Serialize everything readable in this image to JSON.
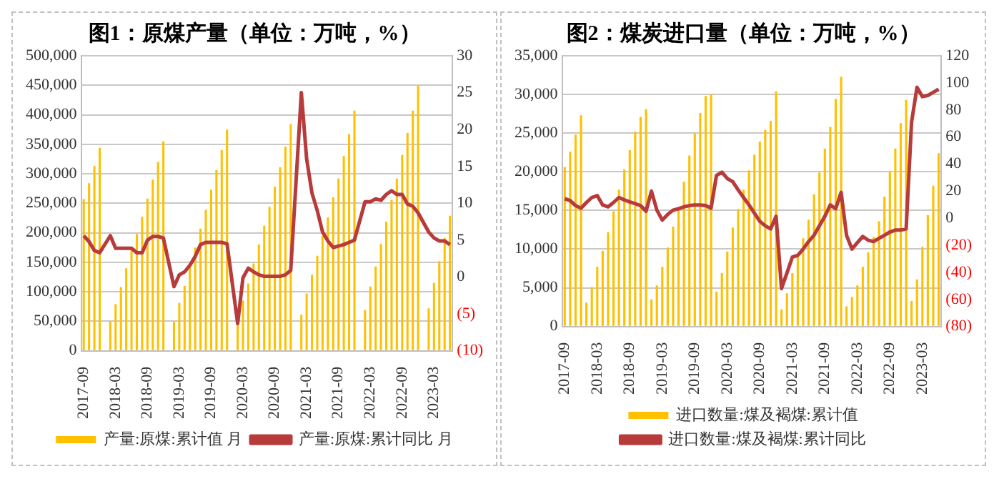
{
  "chart_data": [
    {
      "type": "bar",
      "title": "图1：原煤产量（单位：万吨，%）",
      "categories": [
        "2017-09",
        null,
        null,
        null,
        null,
        null,
        "2018-03",
        null,
        null,
        null,
        null,
        null,
        "2018-09",
        null,
        null,
        null,
        null,
        null,
        "2019-03",
        null,
        null,
        null,
        null,
        null,
        "2019-09",
        null,
        null,
        null,
        null,
        null,
        "2020-03",
        null,
        null,
        null,
        null,
        null,
        "2020-09",
        null,
        null,
        null,
        null,
        null,
        "2021-03",
        null,
        null,
        null,
        null,
        null,
        "2021-09",
        null,
        null,
        null,
        null,
        null,
        "2022-03",
        null,
        null,
        null,
        null,
        null,
        "2022-09",
        null,
        null,
        null,
        null,
        null,
        "2023-03",
        null,
        null,
        null
      ],
      "series": [
        {
          "name": "产量:原煤:累计值 月",
          "color": "#ffc000",
          "values": [
            257000,
            284000,
            313000,
            344000,
            null,
            50000,
            79000,
            108000,
            140000,
            170000,
            198000,
            227000,
            258000,
            290000,
            320000,
            355000,
            null,
            49000,
            81000,
            110000,
            145000,
            175000,
            207000,
            239000,
            273000,
            306000,
            340000,
            375000,
            null,
            54000,
            85000,
            114000,
            148000,
            180000,
            212000,
            244000,
            278000,
            311000,
            346000,
            384000,
            null,
            61000,
            97000,
            129000,
            161000,
            195000,
            226000,
            260000,
            292000,
            330000,
            367000,
            407000,
            null,
            69000,
            109000,
            143000,
            181000,
            219000,
            256000,
            292000,
            332000,
            369000,
            407000,
            449000,
            null,
            72000,
            115000,
            152000,
            191000,
            229000
          ]
        },
        {
          "name": "产量:原煤:累计同比 月",
          "type": "line",
          "axis": "y2",
          "color": "#b83b3b",
          "values": [
            5.6,
            4.8,
            3.6,
            3.3,
            null,
            5.6,
            3.9,
            3.9,
            3.9,
            3.9,
            3.3,
            3.3,
            5.0,
            5.5,
            5.5,
            5.3,
            null,
            -1.3,
            0.3,
            0.7,
            1.6,
            2.8,
            4.4,
            4.7,
            4.7,
            4.7,
            4.7,
            4.5,
            null,
            -6.3,
            -0.1,
            1.2,
            0.7,
            0.3,
            0.1,
            0.1,
            0.1,
            0.1,
            0.3,
            0.9,
            null,
            25.0,
            16.0,
            11.4,
            9.0,
            6.1,
            4.9,
            4.0,
            4.2,
            4.4,
            4.7,
            5.0,
            null,
            10.2,
            10.2,
            10.6,
            10.4,
            11.2,
            11.7,
            11.2,
            11.2,
            9.9,
            9.6,
            8.7,
            null,
            6.1,
            5.3,
            4.9,
            4.9,
            4.4
          ]
        }
      ],
      "ylim": [
        0,
        500000
      ],
      "yticks": [
        {
          "value": 0,
          "label": "0"
        },
        {
          "value": 50000,
          "label": "50,000"
        },
        {
          "value": 100000,
          "label": "100,000"
        },
        {
          "value": 150000,
          "label": "150,000"
        },
        {
          "value": 200000,
          "label": "200,000"
        },
        {
          "value": 250000,
          "label": "250,000"
        },
        {
          "value": 300000,
          "label": "300,000"
        },
        {
          "value": 350000,
          "label": "350,000"
        },
        {
          "value": 400000,
          "label": "400,000"
        },
        {
          "value": 450000,
          "label": "450,000"
        },
        {
          "value": 500000,
          "label": "500,000"
        }
      ],
      "y2lim": [
        -10,
        30
      ],
      "y2ticks": [
        {
          "value": -10,
          "label": "(10)"
        },
        {
          "value": -5,
          "label": "(5)"
        },
        0,
        5,
        10,
        15,
        20,
        25,
        30
      ],
      "grid": "y",
      "legend": "bottom",
      "marker": "none"
    },
    {
      "type": "bar",
      "title": "图2：煤炭进口量（单位：万吨，%）",
      "categories": [
        "2017-09",
        null,
        null,
        null,
        null,
        null,
        "2018-03",
        null,
        null,
        null,
        null,
        null,
        "2018-09",
        null,
        null,
        null,
        null,
        null,
        "2019-03",
        null,
        null,
        null,
        null,
        null,
        "2019-09",
        null,
        null,
        null,
        null,
        null,
        "2020-03",
        null,
        null,
        null,
        null,
        null,
        "2020-09",
        null,
        null,
        null,
        null,
        null,
        "2021-03",
        null,
        null,
        null,
        null,
        null,
        "2021-09",
        null,
        null,
        null,
        null,
        null,
        "2022-03",
        null,
        null,
        null,
        null,
        null,
        "2022-09",
        null,
        null,
        null,
        null,
        null,
        "2023-03",
        null,
        null,
        null
      ],
      "series": [
        {
          "name": "进口数量:煤及褐煤:累计值",
          "color": "#ffc000",
          "values": [
            20600,
            22600,
            24800,
            27300,
            3100,
            5100,
            7700,
            9800,
            12200,
            14900,
            17700,
            20300,
            22800,
            25200,
            27100,
            28100,
            3500,
            5300,
            7700,
            10200,
            12900,
            15400,
            18700,
            22100,
            25000,
            27600,
            29800,
            30000,
            4500,
            6900,
            9700,
            12800,
            15200,
            17700,
            20200,
            22200,
            23900,
            25400,
            26600,
            30400,
            2200,
            4300,
            6900,
            9000,
            11400,
            13800,
            17100,
            19900,
            23000,
            25800,
            29400,
            32300,
            2600,
            3800,
            5300,
            7700,
            9600,
            11600,
            13600,
            16800,
            20100,
            23000,
            26300,
            29300,
            3300,
            6100,
            10300,
            14400,
            18200,
            22400
          ]
        },
        {
          "name": "进口数量:煤及褐煤:累计同比",
          "type": "line",
          "axis": "y2",
          "color": "#b83b3b",
          "values": [
            14.4,
            13,
            9.3,
            7.4,
            11.6,
            15.3,
            16.7,
            9.8,
            8.4,
            11.6,
            15.3,
            13.5,
            12.1,
            10.7,
            9.3,
            5.1,
            20,
            6,
            -1.4,
            2.8,
            6,
            7,
            8.4,
            9.3,
            9.8,
            9.8,
            9.3,
            7.4,
            31.6,
            34,
            29.3,
            27,
            20.9,
            15.3,
            9.8,
            3.7,
            -2.3,
            -5.6,
            -7.9,
            1.4,
            -52,
            -40.5,
            -28.8,
            -27.4,
            -22.8,
            -17.2,
            -12.6,
            -5.6,
            1.4,
            9.8,
            7,
            19.1,
            -12.6,
            -22.8,
            -18.1,
            -13.5,
            -16.3,
            -17.2,
            -14.9,
            -12.6,
            -10.2,
            -8.8,
            -8.8,
            -7.9,
            71,
            96.7,
            89.8,
            90.7,
            93,
            95.3
          ]
        }
      ],
      "ylim": [
        0,
        35000
      ],
      "yticks": [
        {
          "value": 0,
          "label": "0"
        },
        {
          "value": 5000,
          "label": "5,000"
        },
        {
          "value": 10000,
          "label": "10,000"
        },
        {
          "value": 15000,
          "label": "15,000"
        },
        {
          "value": 20000,
          "label": "20,000"
        },
        {
          "value": 25000,
          "label": "25,000"
        },
        {
          "value": 30000,
          "label": "30,000"
        },
        {
          "value": 35000,
          "label": "35,000"
        }
      ],
      "y2lim": [
        -80,
        120
      ],
      "y2ticks": [
        {
          "value": -80,
          "label": "(80)"
        },
        {
          "value": -60,
          "label": "(60)"
        },
        {
          "value": -40,
          "label": "(40)"
        },
        {
          "value": -20,
          "label": "(20)"
        },
        0,
        20,
        40,
        60,
        80,
        100,
        120
      ],
      "grid": "y",
      "legend": "bottom",
      "marker": "none"
    }
  ]
}
